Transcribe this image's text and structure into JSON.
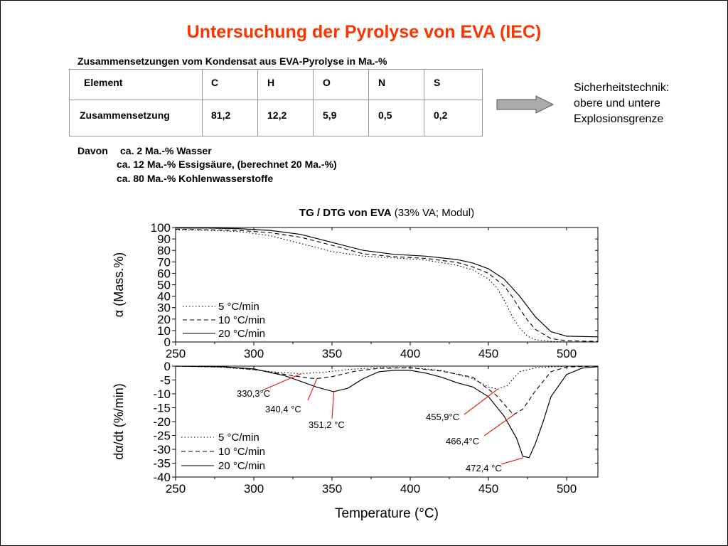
{
  "slide_title": "Untersuchung der Pyrolyse von EVA (IEC)",
  "table_caption": "Zusammensetzungen vom Kondensat aus EVA-Pyrolyse in Ma.-%",
  "table": {
    "headers": [
      "Element",
      "C",
      "H",
      "O",
      "N",
      "S"
    ],
    "row": [
      "Zusammensetzung",
      "81,2",
      "12,2",
      "5,9",
      "0,5",
      "0,2"
    ]
  },
  "side_note": [
    "Sicherheitstechnik:",
    "obere und untere",
    "Explosionsgrenze"
  ],
  "davon": {
    "label": "Davon",
    "lines": [
      "ca. 2 Ma.-% Wasser",
      "ca. 12 Ma.-% Essigsäure, (berechnet 20 Ma.-%)",
      "ca. 80 Ma.-% Kohlenwasserstoffe"
    ]
  },
  "colors": {
    "title": "#ff3300",
    "callout": "#e8241c",
    "arrow": "#aaaaaa"
  },
  "chart_data": [
    {
      "type": "line",
      "title_bold": "TG / DTG von EVA",
      "title_rest": " (33% VA; Modul)",
      "xlabel": "",
      "ylabel": "α (Mass.%)",
      "xlim": [
        250,
        520
      ],
      "ylim": [
        0,
        100
      ],
      "xticks": [
        250,
        300,
        350,
        400,
        450,
        500
      ],
      "yticks": [
        0,
        10,
        20,
        30,
        40,
        50,
        60,
        70,
        80,
        90,
        100
      ],
      "grid": false,
      "legend_position": "bottom-left",
      "series": [
        {
          "name": "5 °C/min",
          "style": "dotted",
          "x": [
            250,
            270,
            290,
            310,
            330,
            350,
            370,
            390,
            410,
            430,
            440,
            450,
            455,
            460,
            465,
            470,
            475,
            480,
            490,
            500,
            520
          ],
          "y": [
            98,
            97.5,
            96.5,
            93,
            86,
            79,
            75,
            73.5,
            71.5,
            67,
            63,
            55,
            48,
            37,
            23,
            12,
            5,
            2,
            0.5,
            0,
            0
          ]
        },
        {
          "name": "10 °C/min",
          "style": "dashed",
          "x": [
            250,
            270,
            290,
            310,
            330,
            350,
            370,
            390,
            410,
            430,
            440,
            450,
            460,
            465,
            470,
            475,
            480,
            490,
            500,
            520
          ],
          "y": [
            98.5,
            98,
            97.5,
            95.5,
            91.5,
            84.5,
            77,
            74.5,
            73,
            69.5,
            65.5,
            60,
            49,
            40,
            29,
            19,
            11,
            3,
            1,
            0.5
          ]
        },
        {
          "name": "20 °C/min",
          "style": "solid",
          "x": [
            250,
            270,
            290,
            310,
            330,
            350,
            370,
            390,
            410,
            430,
            440,
            450,
            460,
            470,
            480,
            490,
            500,
            520
          ],
          "y": [
            99.5,
            99.5,
            99,
            97.5,
            94,
            87,
            80,
            76.5,
            75,
            72,
            69,
            64,
            55,
            40,
            22,
            9,
            5,
            4.5
          ]
        }
      ]
    },
    {
      "type": "line",
      "xlabel": "Temperature (°C)",
      "ylabel": "dα/dt (%/min)",
      "xlim": [
        250,
        520
      ],
      "ylim": [
        -40,
        0
      ],
      "xticks": [
        250,
        300,
        350,
        400,
        450,
        500
      ],
      "yticks": [
        0,
        -5,
        -10,
        -15,
        -20,
        -25,
        -30,
        -35,
        -40
      ],
      "grid": false,
      "legend_position": "bottom-left",
      "series": [
        {
          "name": "5  °C/min",
          "style": "dotted",
          "x": [
            250,
            280,
            300,
            315,
            330,
            345,
            360,
            380,
            400,
            420,
            440,
            450,
            456,
            462,
            470,
            480,
            500,
            520
          ],
          "y": [
            0,
            -0.4,
            -1.3,
            -2.2,
            -2.7,
            -2.2,
            -1.2,
            -0.5,
            -0.5,
            -1.5,
            -4.5,
            -7.5,
            -8.3,
            -7,
            -2,
            -0.6,
            0,
            0
          ]
        },
        {
          "name": "10 °C/min",
          "style": "dashed",
          "x": [
            250,
            280,
            300,
            320,
            335,
            340,
            350,
            365,
            380,
            400,
            420,
            440,
            455,
            466,
            472,
            480,
            490,
            500,
            520
          ],
          "y": [
            0,
            -0.3,
            -1.2,
            -3,
            -4.3,
            -4.5,
            -3.8,
            -1.8,
            -0.8,
            -0.6,
            -1.8,
            -4,
            -10.5,
            -17.5,
            -15.5,
            -9,
            -2,
            -0.3,
            0
          ]
        },
        {
          "name": "20 °C/min",
          "style": "solid",
          "x": [
            250,
            280,
            300,
            320,
            340,
            351,
            360,
            370,
            380,
            390,
            400,
            410,
            420,
            430,
            440,
            450,
            460,
            468,
            472,
            476,
            480,
            485,
            490,
            500,
            510,
            520
          ],
          "y": [
            0,
            -0.2,
            -1,
            -3.5,
            -7.5,
            -9.2,
            -8,
            -4.5,
            -2,
            -1.5,
            -1.5,
            -2.5,
            -4,
            -6,
            -7.5,
            -11,
            -18,
            -26,
            -32.5,
            -33,
            -28,
            -20,
            -11,
            -3,
            -0.7,
            -0.2
          ]
        }
      ],
      "annotations": [
        {
          "text": "330,3°C",
          "x": 330.3,
          "y": -2.7
        },
        {
          "text": "340,4 °C",
          "x": 340.4,
          "y": -4.5
        },
        {
          "text": "351,2 °C",
          "x": 351.2,
          "y": -9.2
        },
        {
          "text": "455,9°C",
          "x": 455.9,
          "y": -8.3
        },
        {
          "text": "466,4°C",
          "x": 466.4,
          "y": -17.5
        },
        {
          "text": "472,4 °C",
          "x": 472.4,
          "y": -33
        }
      ]
    }
  ]
}
